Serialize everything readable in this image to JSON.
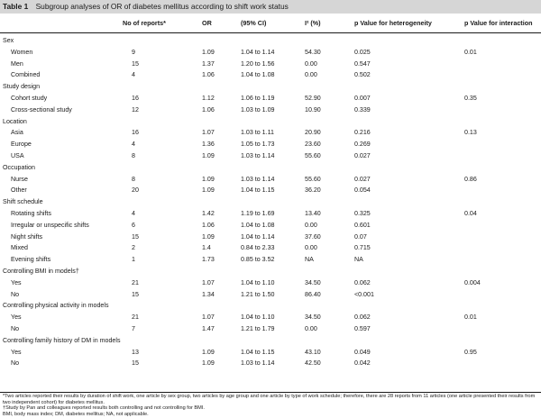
{
  "table": {
    "number": "Table 1",
    "caption": "Subgroup analyses of OR of diabetes mellitus according to shift work status",
    "columns": [
      "",
      "No of reports*",
      "OR",
      "(95% CI)",
      "I² (%)",
      "p Value for heterogeneity",
      "p Value for interaction"
    ],
    "rows": [
      {
        "type": "section",
        "label": "Sex"
      },
      {
        "type": "data",
        "label": "Women",
        "n": "9",
        "or": "1.09",
        "ci": "1.04 to 1.14",
        "i2": "54.30",
        "p_het": "0.025",
        "p_int": "0.01"
      },
      {
        "type": "data",
        "label": "Men",
        "n": "15",
        "or": "1.37",
        "ci": "1.20 to 1.56",
        "i2": "0.00",
        "p_het": "0.547",
        "p_int": ""
      },
      {
        "type": "data",
        "label": "Combined",
        "n": "4",
        "or": "1.06",
        "ci": "1.04 to 1.08",
        "i2": "0.00",
        "p_het": "0.502",
        "p_int": ""
      },
      {
        "type": "section",
        "label": "Study design"
      },
      {
        "type": "data",
        "label": "Cohort study",
        "n": "16",
        "or": "1.12",
        "ci": "1.06 to 1.19",
        "i2": "52.90",
        "p_het": "0.007",
        "p_int": "0.35"
      },
      {
        "type": "data",
        "label": "Cross-sectional study",
        "n": "12",
        "or": "1.06",
        "ci": "1.03 to 1.09",
        "i2": "10.90",
        "p_het": "0.339",
        "p_int": ""
      },
      {
        "type": "section",
        "label": "Location"
      },
      {
        "type": "data",
        "label": "Asia",
        "n": "16",
        "or": "1.07",
        "ci": "1.03 to 1.11",
        "i2": "20.90",
        "p_het": "0.216",
        "p_int": "0.13"
      },
      {
        "type": "data",
        "label": "Europe",
        "n": "4",
        "or": "1.36",
        "ci": "1.05 to 1.73",
        "i2": "23.60",
        "p_het": "0.269",
        "p_int": ""
      },
      {
        "type": "data",
        "label": "USA",
        "n": "8",
        "or": "1.09",
        "ci": "1.03 to 1.14",
        "i2": "55.60",
        "p_het": "0.027",
        "p_int": ""
      },
      {
        "type": "section",
        "label": "Occupation"
      },
      {
        "type": "data",
        "label": "Nurse",
        "n": "8",
        "or": "1.09",
        "ci": "1.03 to 1.14",
        "i2": "55.60",
        "p_het": "0.027",
        "p_int": "0.86"
      },
      {
        "type": "data",
        "label": "Other",
        "n": "20",
        "or": "1.09",
        "ci": "1.04 to 1.15",
        "i2": "36.20",
        "p_het": "0.054",
        "p_int": ""
      },
      {
        "type": "section",
        "label": "Shift schedule"
      },
      {
        "type": "data",
        "label": "Rotating shifts",
        "n": "4",
        "or": "1.42",
        "ci": "1.19 to 1.69",
        "i2": "13.40",
        "p_het": "0.325",
        "p_int": "0.04"
      },
      {
        "type": "data",
        "label": "Irregular or unspecific shifts",
        "n": "6",
        "or": "1.06",
        "ci": "1.04 to 1.08",
        "i2": "0.00",
        "p_het": "0.601",
        "p_int": ""
      },
      {
        "type": "data",
        "label": "Night shifts",
        "n": "15",
        "or": "1.09",
        "ci": "1.04 to 1.14",
        "i2": "37.60",
        "p_het": "0.07",
        "p_int": ""
      },
      {
        "type": "data",
        "label": "Mixed",
        "n": "2",
        "or": "1.4",
        "ci": "0.84 to 2.33",
        "i2": "0.00",
        "p_het": "0.715",
        "p_int": ""
      },
      {
        "type": "data",
        "label": "Evening shifts",
        "n": "1",
        "or": "1.73",
        "ci": "0.85 to 3.52",
        "i2": "NA",
        "p_het": "NA",
        "p_int": ""
      },
      {
        "type": "section",
        "label": "Controlling BMI in models†"
      },
      {
        "type": "data",
        "label": "Yes",
        "n": "21",
        "or": "1.07",
        "ci": "1.04 to 1.10",
        "i2": "34.50",
        "p_het": "0.062",
        "p_int": "0.004"
      },
      {
        "type": "data",
        "label": "No",
        "n": "15",
        "or": "1.34",
        "ci": "1.21 to 1.50",
        "i2": "86.40",
        "p_het": "<0.001",
        "p_int": ""
      },
      {
        "type": "section",
        "label": "Controlling physical activity in models"
      },
      {
        "type": "data",
        "label": "Yes",
        "n": "21",
        "or": "1.07",
        "ci": "1.04 to 1.10",
        "i2": "34.50",
        "p_het": "0.062",
        "p_int": "0.01"
      },
      {
        "type": "data",
        "label": "No",
        "n": "7",
        "or": "1.47",
        "ci": "1.21 to 1.79",
        "i2": "0.00",
        "p_het": "0.597",
        "p_int": ""
      },
      {
        "type": "section",
        "label": "Controlling family history of DM in models"
      },
      {
        "type": "data",
        "label": "Yes",
        "n": "13",
        "or": "1.09",
        "ci": "1.04 to 1.15",
        "i2": "43.10",
        "p_het": "0.049",
        "p_int": "0.95"
      },
      {
        "type": "data",
        "label": "No",
        "n": "15",
        "or": "1.09",
        "ci": "1.03 to 1.14",
        "i2": "42.50",
        "p_het": "0.042",
        "p_int": ""
      }
    ],
    "footnotes": [
      "*Two articles reported their results by duration of shift work, one article by sex group, two articles by age group and one article by type of work schedule; therefore, there are 28 reports from 11 articles (one article presented their results from two independent cohort) for diabetes mellitus.",
      "†Study by Pan and colleagues reported results both controlling and not controlling for BMI.",
      "BMI, body mass index; DM, diabetes mellitus; NA, not applicable."
    ]
  }
}
